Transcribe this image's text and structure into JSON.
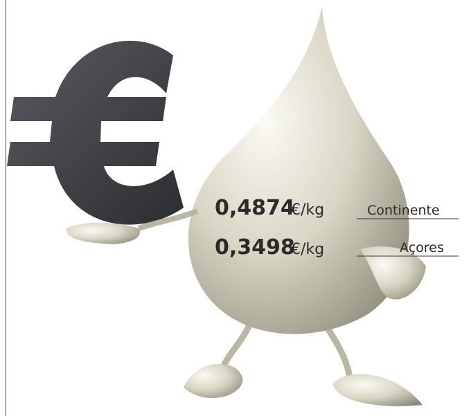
{
  "prices": [
    {
      "value": "0,4874",
      "unit": "€/kg",
      "region": "Continente"
    },
    {
      "value": "0,3498",
      "unit": "€/kg",
      "region": "Açores"
    }
  ]
}
